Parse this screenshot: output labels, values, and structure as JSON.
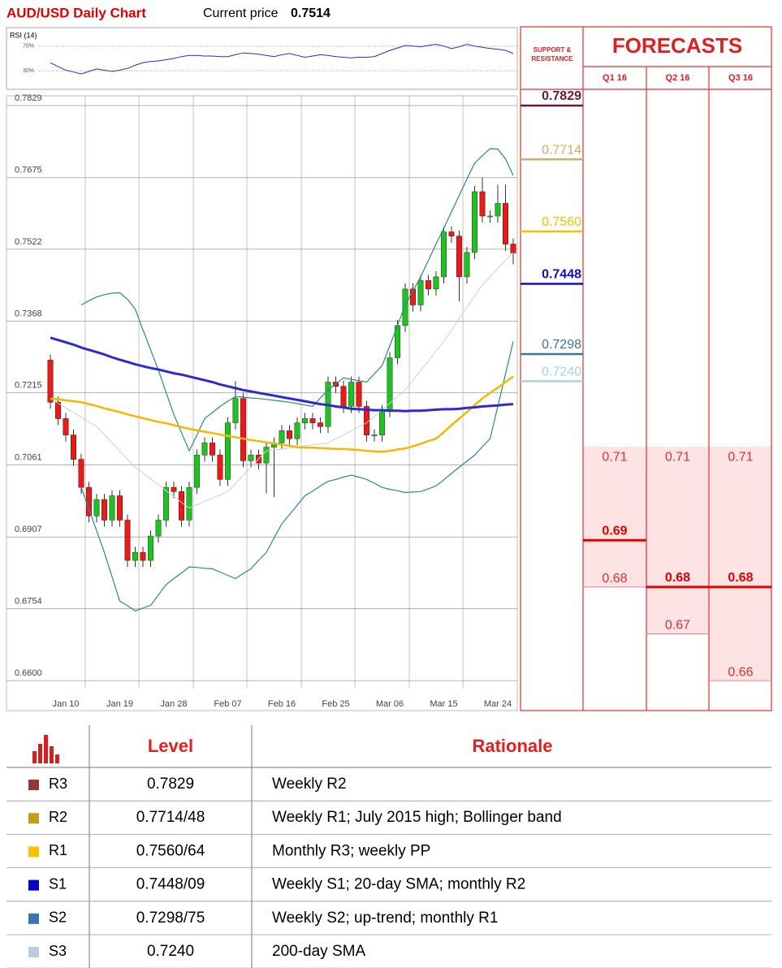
{
  "chart_data": [
    {
      "type": "line",
      "title": "RSI (14)",
      "ylim": [
        0,
        100
      ],
      "yticks": [
        {
          "value": 30,
          "label": "30%"
        },
        {
          "value": 70,
          "label": "70%"
        }
      ],
      "color": "#2b2bd0",
      "values": [
        43,
        37,
        31,
        28,
        25,
        29,
        33,
        31,
        29,
        31,
        34,
        39,
        43,
        45,
        46,
        48,
        50,
        53,
        55,
        55,
        54,
        54,
        53,
        53,
        56,
        59,
        58,
        57,
        55,
        53,
        56,
        58,
        55,
        52,
        54,
        56,
        55,
        53,
        52,
        51,
        52,
        52,
        53,
        58,
        63,
        67,
        71,
        70,
        69,
        71,
        73,
        70,
        66,
        69,
        73,
        70,
        68,
        66,
        65,
        63,
        58
      ]
    },
    {
      "type": "candlestick",
      "title": "AUD/USD Daily Chart",
      "price_label": "Current price",
      "price": 0.7514,
      "ylim": [
        0.6536,
        0.7829
      ],
      "yticks": [
        {
          "value": 0.66,
          "label": "0.6600"
        },
        0.6754,
        0.6907,
        0.7061,
        0.7215,
        0.7368,
        0.7522,
        0.7675,
        0.7829
      ],
      "categories": [
        null,
        null,
        "Jan 10",
        null,
        null,
        null,
        null,
        null,
        null,
        "Jan 19",
        null,
        null,
        null,
        null,
        null,
        null,
        "Jan 28",
        null,
        null,
        null,
        null,
        null,
        null,
        "Feb 07",
        null,
        null,
        null,
        null,
        null,
        null,
        "Feb 16",
        null,
        null,
        null,
        null,
        null,
        null,
        "Feb 25",
        null,
        null,
        null,
        null,
        null,
        null,
        "Mar 06",
        null,
        null,
        null,
        null,
        null,
        null,
        "Mar 15",
        null,
        null,
        null,
        null,
        null,
        null,
        "Mar 24",
        null,
        null
      ],
      "up_color": "#22c022",
      "down_color": "#e81b1b",
      "ohlc": [
        [
          0.7285,
          0.7297,
          0.7181,
          0.7195
        ],
        [
          0.7195,
          0.7207,
          0.7146,
          0.716
        ],
        [
          0.716,
          0.7172,
          0.7111,
          0.7125
        ],
        [
          0.7125,
          0.7137,
          0.7059,
          0.7073
        ],
        [
          0.7073,
          0.7085,
          0.6999,
          0.7013
        ],
        [
          0.7013,
          0.7025,
          0.6938,
          0.6952
        ],
        [
          0.6952,
          0.6999,
          0.6938,
          0.6987
        ],
        [
          0.6987,
          0.6999,
          0.6929,
          0.6943
        ],
        [
          0.6943,
          0.7007,
          0.6929,
          0.6995
        ],
        [
          0.6995,
          0.7007,
          0.6929,
          0.6943
        ],
        [
          0.6943,
          0.6955,
          0.6843,
          0.6857
        ],
        [
          0.6857,
          0.6886,
          0.6843,
          0.6874
        ],
        [
          0.6874,
          0.6886,
          0.6843,
          0.6857
        ],
        [
          0.6857,
          0.6921,
          0.6843,
          0.6909
        ],
        [
          0.6909,
          0.6955,
          0.6895,
          0.6943
        ],
        [
          0.6943,
          0.7025,
          0.6929,
          0.7013
        ],
        [
          0.7013,
          0.7025,
          0.699,
          0.7004
        ],
        [
          0.7004,
          0.7016,
          0.6929,
          0.6943
        ],
        [
          0.6943,
          0.7025,
          0.6929,
          0.7013
        ],
        [
          0.7013,
          0.7094,
          0.6999,
          0.7082
        ],
        [
          0.7082,
          0.712,
          0.7068,
          0.7108
        ],
        [
          0.7108,
          0.712,
          0.7068,
          0.7082
        ],
        [
          0.7082,
          0.7094,
          0.7016,
          0.703
        ],
        [
          0.703,
          0.7163,
          0.7016,
          0.7151
        ],
        [
          0.7151,
          0.724,
          0.7137,
          0.7203
        ],
        [
          0.7203,
          0.7215,
          0.7056,
          0.707
        ],
        [
          0.707,
          0.7094,
          0.7056,
          0.7082
        ],
        [
          0.7082,
          0.7094,
          0.7051,
          0.7065
        ],
        [
          0.7065,
          0.7111,
          0.7,
          0.7099
        ],
        [
          0.7099,
          0.712,
          0.6992,
          0.7108
        ],
        [
          0.7108,
          0.7146,
          0.7094,
          0.7134
        ],
        [
          0.7134,
          0.7146,
          0.7103,
          0.7117
        ],
        [
          0.7117,
          0.7163,
          0.7103,
          0.7151
        ],
        [
          0.7151,
          0.7172,
          0.7137,
          0.716
        ],
        [
          0.716,
          0.7172,
          0.7137,
          0.7151
        ],
        [
          0.7151,
          0.7163,
          0.7129,
          0.7143
        ],
        [
          0.7143,
          0.725,
          0.7129,
          0.7238
        ],
        [
          0.7238,
          0.725,
          0.7215,
          0.7229
        ],
        [
          0.7229,
          0.7241,
          0.7172,
          0.7186
        ],
        [
          0.7186,
          0.725,
          0.7172,
          0.7238
        ],
        [
          0.7238,
          0.725,
          0.7172,
          0.7186
        ],
        [
          0.7186,
          0.7198,
          0.7111,
          0.7125
        ],
        [
          0.7125,
          0.7137,
          0.7111,
          0.7125
        ],
        [
          0.7125,
          0.7189,
          0.7111,
          0.7177
        ],
        [
          0.7177,
          0.7302,
          0.7163,
          0.729
        ],
        [
          0.729,
          0.7371,
          0.7276,
          0.7359
        ],
        [
          0.7359,
          0.7449,
          0.7345,
          0.7437
        ],
        [
          0.7437,
          0.7449,
          0.7389,
          0.7403
        ],
        [
          0.7403,
          0.7467,
          0.7389,
          0.7455
        ],
        [
          0.7455,
          0.7467,
          0.7423,
          0.7437
        ],
        [
          0.7437,
          0.7475,
          0.7423,
          0.7463
        ],
        [
          0.7463,
          0.7571,
          0.7449,
          0.7559
        ],
        [
          0.7559,
          0.7571,
          0.7536,
          0.755
        ],
        [
          0.755,
          0.7562,
          0.741,
          0.7463
        ],
        [
          0.7463,
          0.7527,
          0.7449,
          0.7515
        ],
        [
          0.7515,
          0.7657,
          0.7501,
          0.7645
        ],
        [
          0.7645,
          0.7675,
          0.7579,
          0.7593
        ],
        [
          0.7593,
          0.7605,
          0.7579,
          0.7593
        ],
        [
          0.7593,
          0.766,
          0.7579,
          0.762
        ],
        [
          0.762,
          0.766,
          0.7519,
          0.7533
        ],
        [
          0.7533,
          0.7545,
          0.749,
          0.7514
        ]
      ],
      "series": [
        {
          "color": "#2a8a8a",
          "width": 1.2,
          "values": [
            null,
            null,
            null,
            null,
            0.7403,
            0.7412,
            0.742,
            0.7425,
            0.7428,
            0.7429,
            0.7415,
            0.7394,
            0.735,
            0.7307,
            0.7264,
            0.7216,
            0.7169,
            0.713,
            0.7091,
            0.7125,
            0.716,
            0.7173,
            0.7186,
            0.7197,
            0.7207,
            0.7206,
            0.7204,
            0.7203,
            0.7201,
            0.7199,
            0.7197,
            0.7195,
            0.7192,
            0.7189,
            0.7186,
            0.7204,
            0.7221,
            0.7234,
            0.7247,
            0.7244,
            0.7241,
            0.7238,
            0.7256,
            0.7273,
            0.7316,
            0.7359,
            0.7403,
            0.7433,
            0.7463,
            0.7498,
            0.7533,
            0.7567,
            0.7602,
            0.7637,
            0.7672,
            0.7706,
            0.7722,
            0.7737,
            0.7736,
            0.7715,
            0.768
          ]
        },
        {
          "color": "#d0d0d0",
          "width": 1,
          "values": [
            0.7203,
            0.7193,
            0.7183,
            0.7173,
            0.7163,
            0.7153,
            0.7143,
            0.7126,
            0.7108,
            0.7091,
            0.7073,
            0.7056,
            0.7044,
            0.7031,
            0.7019,
            0.7006,
            0.6994,
            0.6981,
            0.6969,
            0.6976,
            0.6983,
            0.699,
            0.6997,
            0.7004,
            0.7021,
            0.7039,
            0.7056,
            0.7074,
            0.7091,
            0.7093,
            0.7095,
            0.7097,
            0.71,
            0.7102,
            0.7104,
            0.7106,
            0.7108,
            0.7117,
            0.7125,
            0.7134,
            0.7142,
            0.7151,
            0.7165,
            0.7179,
            0.7193,
            0.7207,
            0.7221,
            0.7242,
            0.7263,
            0.7283,
            0.7304,
            0.7325,
            0.7349,
            0.7373,
            0.7398,
            0.7422,
            0.7446,
            0.7463,
            0.7481,
            0.7498,
            0.7515
          ]
        },
        {
          "color": "#2a8a8a",
          "width": 1.2,
          "values": [
            null,
            null,
            null,
            null,
            0.7013,
            0.6967,
            0.692,
            0.6874,
            0.6822,
            0.677,
            0.676,
            0.6749,
            0.6755,
            0.6761,
            0.6783,
            0.6805,
            0.6818,
            0.683,
            0.6843,
            0.6842,
            0.684,
            0.6839,
            0.6832,
            0.6825,
            0.6818,
            0.6829,
            0.6839,
            0.6857,
            0.6874,
            0.6905,
            0.6935,
            0.6955,
            0.6975,
            0.6995,
            0.7005,
            0.7016,
            0.7026,
            0.703,
            0.7035,
            0.7039,
            0.7035,
            0.703,
            0.7022,
            0.7013,
            0.7009,
            0.7006,
            0.7002,
            0.7003,
            0.7004,
            0.701,
            0.7016,
            0.7029,
            0.7043,
            0.7056,
            0.7069,
            0.7082,
            0.71,
            0.7117,
            0.7186,
            0.7255,
            0.7325
          ]
        },
        {
          "color": "#f5b800",
          "width": 2.5,
          "values": [
            0.7203,
            0.7201,
            0.7199,
            0.7197,
            0.7195,
            0.7191,
            0.7187,
            0.7182,
            0.7178,
            0.7174,
            0.7169,
            0.7165,
            0.7161,
            0.7157,
            0.7153,
            0.715,
            0.7146,
            0.7142,
            0.7138,
            0.7135,
            0.7132,
            0.7129,
            0.7126,
            0.7123,
            0.712,
            0.7117,
            0.7114,
            0.7112,
            0.7109,
            0.7107,
            0.7104,
            0.7102,
            0.7099,
            0.7098,
            0.7098,
            0.7097,
            0.7096,
            0.7095,
            0.7095,
            0.7094,
            0.7093,
            0.7091,
            0.709,
            0.7089,
            0.7091,
            0.7094,
            0.7096,
            0.7101,
            0.7106,
            0.7112,
            0.7117,
            0.7131,
            0.7146,
            0.716,
            0.7174,
            0.7189,
            0.7203,
            0.7215,
            0.7226,
            0.7238,
            0.725
          ]
        },
        {
          "color": "#2b2bd0",
          "width": 3,
          "values": [
            0.7333,
            0.7328,
            0.7323,
            0.7318,
            0.7312,
            0.7307,
            0.7302,
            0.7297,
            0.7291,
            0.7286,
            0.7281,
            0.7276,
            0.7272,
            0.7268,
            0.7265,
            0.7261,
            0.7257,
            0.7254,
            0.725,
            0.7246,
            0.7242,
            0.7238,
            0.7233,
            0.7229,
            0.7225,
            0.7221,
            0.7218,
            0.7215,
            0.7212,
            0.7209,
            0.7206,
            0.7203,
            0.72,
            0.7197,
            0.7194,
            0.7191,
            0.7189,
            0.7186,
            0.7184,
            0.7181,
            0.718,
            0.7179,
            0.7178,
            0.7178,
            0.7177,
            0.7177,
            0.7176,
            0.7177,
            0.7177,
            0.7178,
            0.7179,
            0.718,
            0.718,
            0.7181,
            0.7183,
            0.7184,
            0.7186,
            0.7187,
            0.7188,
            0.719,
            0.7191
          ]
        }
      ]
    }
  ],
  "support_resistance": {
    "title": "SUPPORT & RESISTANCE",
    "levels": [
      {
        "value": 0.7829,
        "color": "#6d1838"
      },
      {
        "value": 0.7714,
        "color": "#d8a868"
      },
      {
        "value": 0.756,
        "label": "0.7560",
        "color": "#f5c000"
      },
      {
        "value": 0.7448,
        "color": "#1010c0"
      },
      {
        "value": 0.7298,
        "color": "#3a7394"
      },
      {
        "value": 0.724,
        "label": "0.7240",
        "color": "#a8d4d4"
      }
    ]
  },
  "forecasts": {
    "title": "FORECASTS",
    "periods": [
      {
        "name": "Q1 16",
        "high": 0.71,
        "central": 0.69,
        "low": 0.68
      },
      {
        "name": "Q2 16",
        "high": 0.71,
        "central": 0.68,
        "low": 0.67
      },
      {
        "name": "Q3 16",
        "high": 0.71,
        "central": 0.68,
        "low": 0.66
      }
    ]
  },
  "levels_table": {
    "headers": [
      "Level",
      "Rationale"
    ],
    "rows": [
      {
        "name": "R3",
        "color": "#953735",
        "level": "0.7829",
        "rationale": "Weekly R2"
      },
      {
        "name": "R2",
        "color": "#c89b14",
        "level": "0.7714/48",
        "rationale": "Weekly R1; July 2015 high; Bollinger band"
      },
      {
        "name": "R1",
        "color": "#ffc000",
        "level": "0.7560/64",
        "rationale": "Monthly R3; weekly PP"
      },
      {
        "name": "S1",
        "color": "#0000cc",
        "level": "0.7448/09",
        "rationale": "Weekly S1; 20-day SMA; monthly R2"
      },
      {
        "name": "S2",
        "color": "#3a74b5",
        "level": "0.7298/75",
        "rationale": "Weekly S2; up-trend; monthly R1"
      },
      {
        "name": "S3",
        "color": "#b8cce4",
        "level": "0.7240",
        "rationale": "200-day SMA"
      }
    ]
  }
}
